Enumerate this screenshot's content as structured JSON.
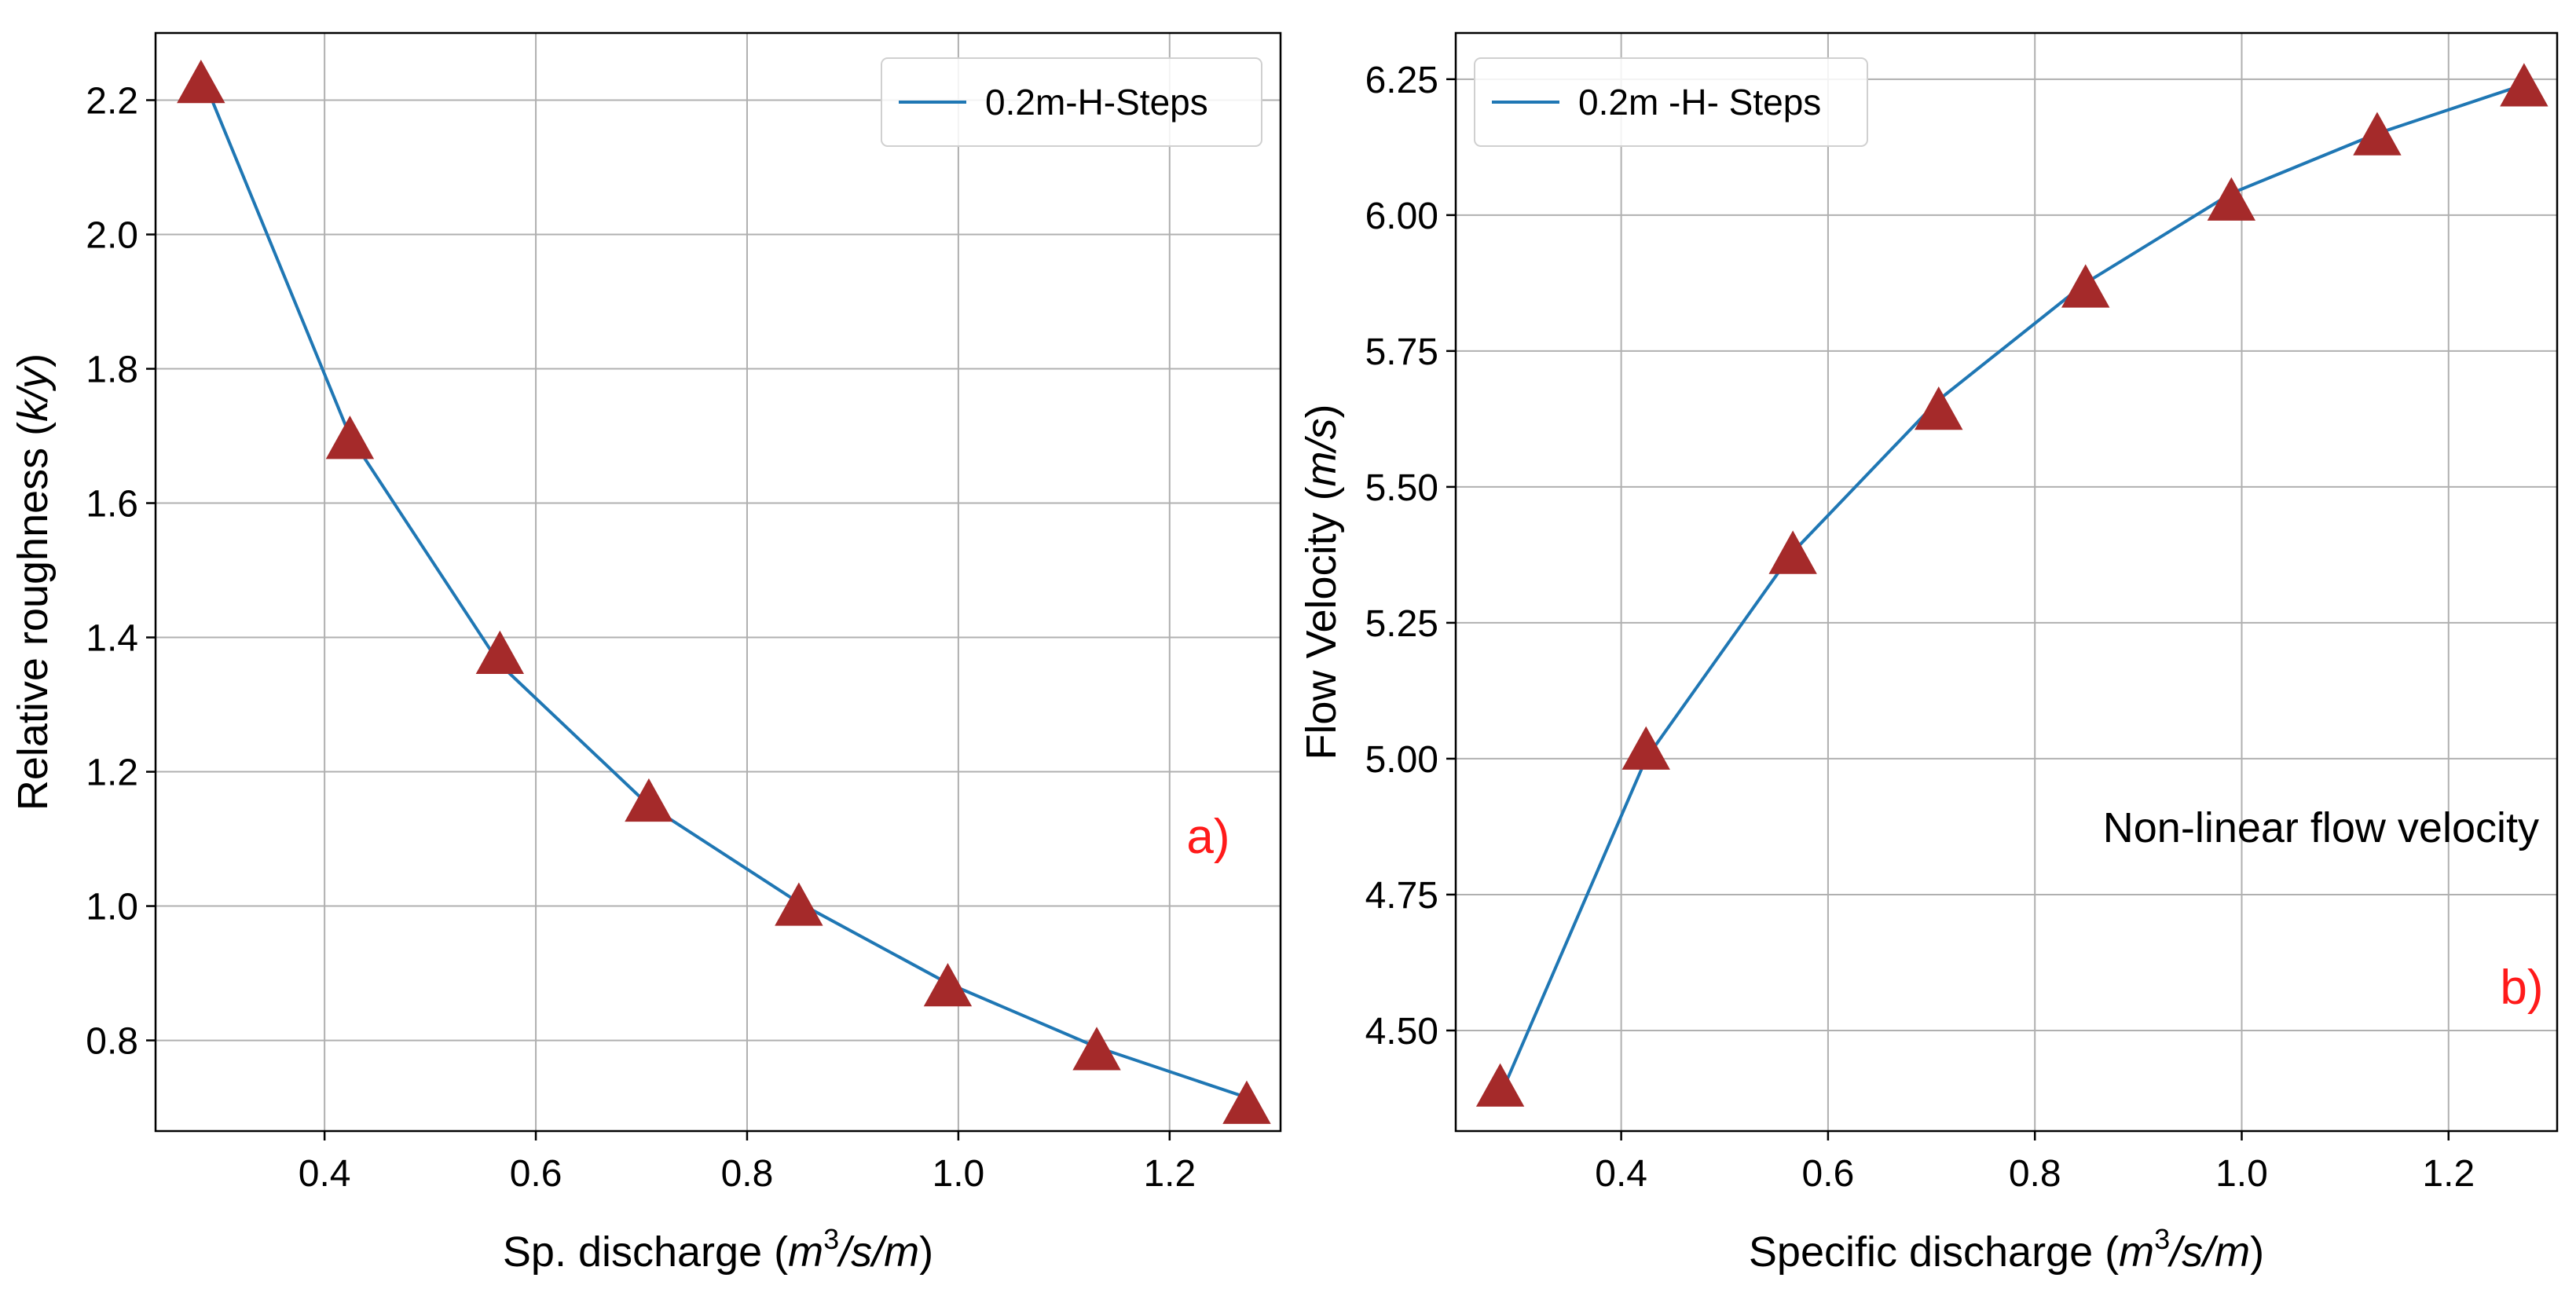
{
  "colors": {
    "line": "#1f77b4",
    "marker": "#a52a2a",
    "grid": "#b0b0b0",
    "panel_tag": "#ff1a1a"
  },
  "chart_data": [
    {
      "type": "line",
      "panel_tag": "a)",
      "xlabel_prefix": "Sp. discharge (",
      "xlabel_math": "m",
      "xlabel_sup": "3",
      "xlabel_suffix": "/s/m",
      "xlabel_close": ")",
      "ylabel_prefix": "Relative roughness (",
      "ylabel_math": "k/y",
      "ylabel_close": ")",
      "xlim": [
        0.24,
        1.305
      ],
      "ylim": [
        0.665,
        2.3
      ],
      "xticks": [
        0.4,
        0.6,
        0.8,
        1.0,
        1.2
      ],
      "xtick_labels": [
        "0.4",
        "0.6",
        "0.8",
        "1.0",
        "1.2"
      ],
      "yticks": [
        0.8,
        1.0,
        1.2,
        1.4,
        1.6,
        1.8,
        2.0,
        2.2
      ],
      "ytick_labels": [
        "0.8",
        "1.0",
        "1.2",
        "1.4",
        "1.6",
        "1.8",
        "2.0",
        "2.2"
      ],
      "legend": {
        "label": "0.2m-H-Steps",
        "location": "upper right"
      },
      "line": {
        "x": [
          0.283,
          0.424,
          0.566,
          0.707,
          0.849,
          0.99,
          1.131,
          1.273
        ],
        "y": [
          2.24,
          1.7,
          1.36,
          1.15,
          1.005,
          0.885,
          0.79,
          0.715
        ]
      },
      "markers": {
        "x": [
          0.283,
          0.424,
          0.566,
          0.707,
          0.849,
          0.99,
          1.131,
          1.273
        ],
        "y": [
          2.22,
          1.69,
          1.37,
          1.15,
          0.995,
          0.875,
          0.78,
          0.7
        ]
      }
    },
    {
      "type": "line",
      "panel_tag": "b)",
      "annotation": "Non-linear flow velocity",
      "xlabel_prefix": "Specific discharge (",
      "xlabel_math": "m",
      "xlabel_sup": "3",
      "xlabel_suffix": "/s/m",
      "xlabel_close": ")",
      "ylabel_prefix": "Flow Velocity (",
      "ylabel_math": "m/s",
      "ylabel_close": ")",
      "xlim": [
        0.24,
        1.305
      ],
      "ylim": [
        4.315,
        6.335
      ],
      "xticks": [
        0.4,
        0.6,
        0.8,
        1.0,
        1.2
      ],
      "xtick_labels": [
        "0.4",
        "0.6",
        "0.8",
        "1.0",
        "1.2"
      ],
      "yticks": [
        4.5,
        4.75,
        5.0,
        5.25,
        5.5,
        5.75,
        6.0,
        6.25
      ],
      "ytick_labels": [
        "4.50",
        "4.75",
        "5.00",
        "5.25",
        "5.50",
        "5.75",
        "6.00",
        "6.25"
      ],
      "legend": {
        "label": "0.2m -H- Steps",
        "location": "upper left"
      },
      "line": {
        "x": [
          0.283,
          0.424,
          0.566,
          0.707,
          0.849,
          0.99,
          1.131,
          1.273
        ],
        "y": [
          4.38,
          5.0,
          5.38,
          5.66,
          5.875,
          6.04,
          6.15,
          6.24
        ]
      },
      "markers": {
        "x": [
          0.283,
          0.424,
          0.566,
          0.707,
          0.849,
          0.99,
          1.131,
          1.273
        ],
        "y": [
          4.39,
          5.01,
          5.37,
          5.635,
          5.86,
          6.02,
          6.14,
          6.23
        ]
      }
    }
  ]
}
